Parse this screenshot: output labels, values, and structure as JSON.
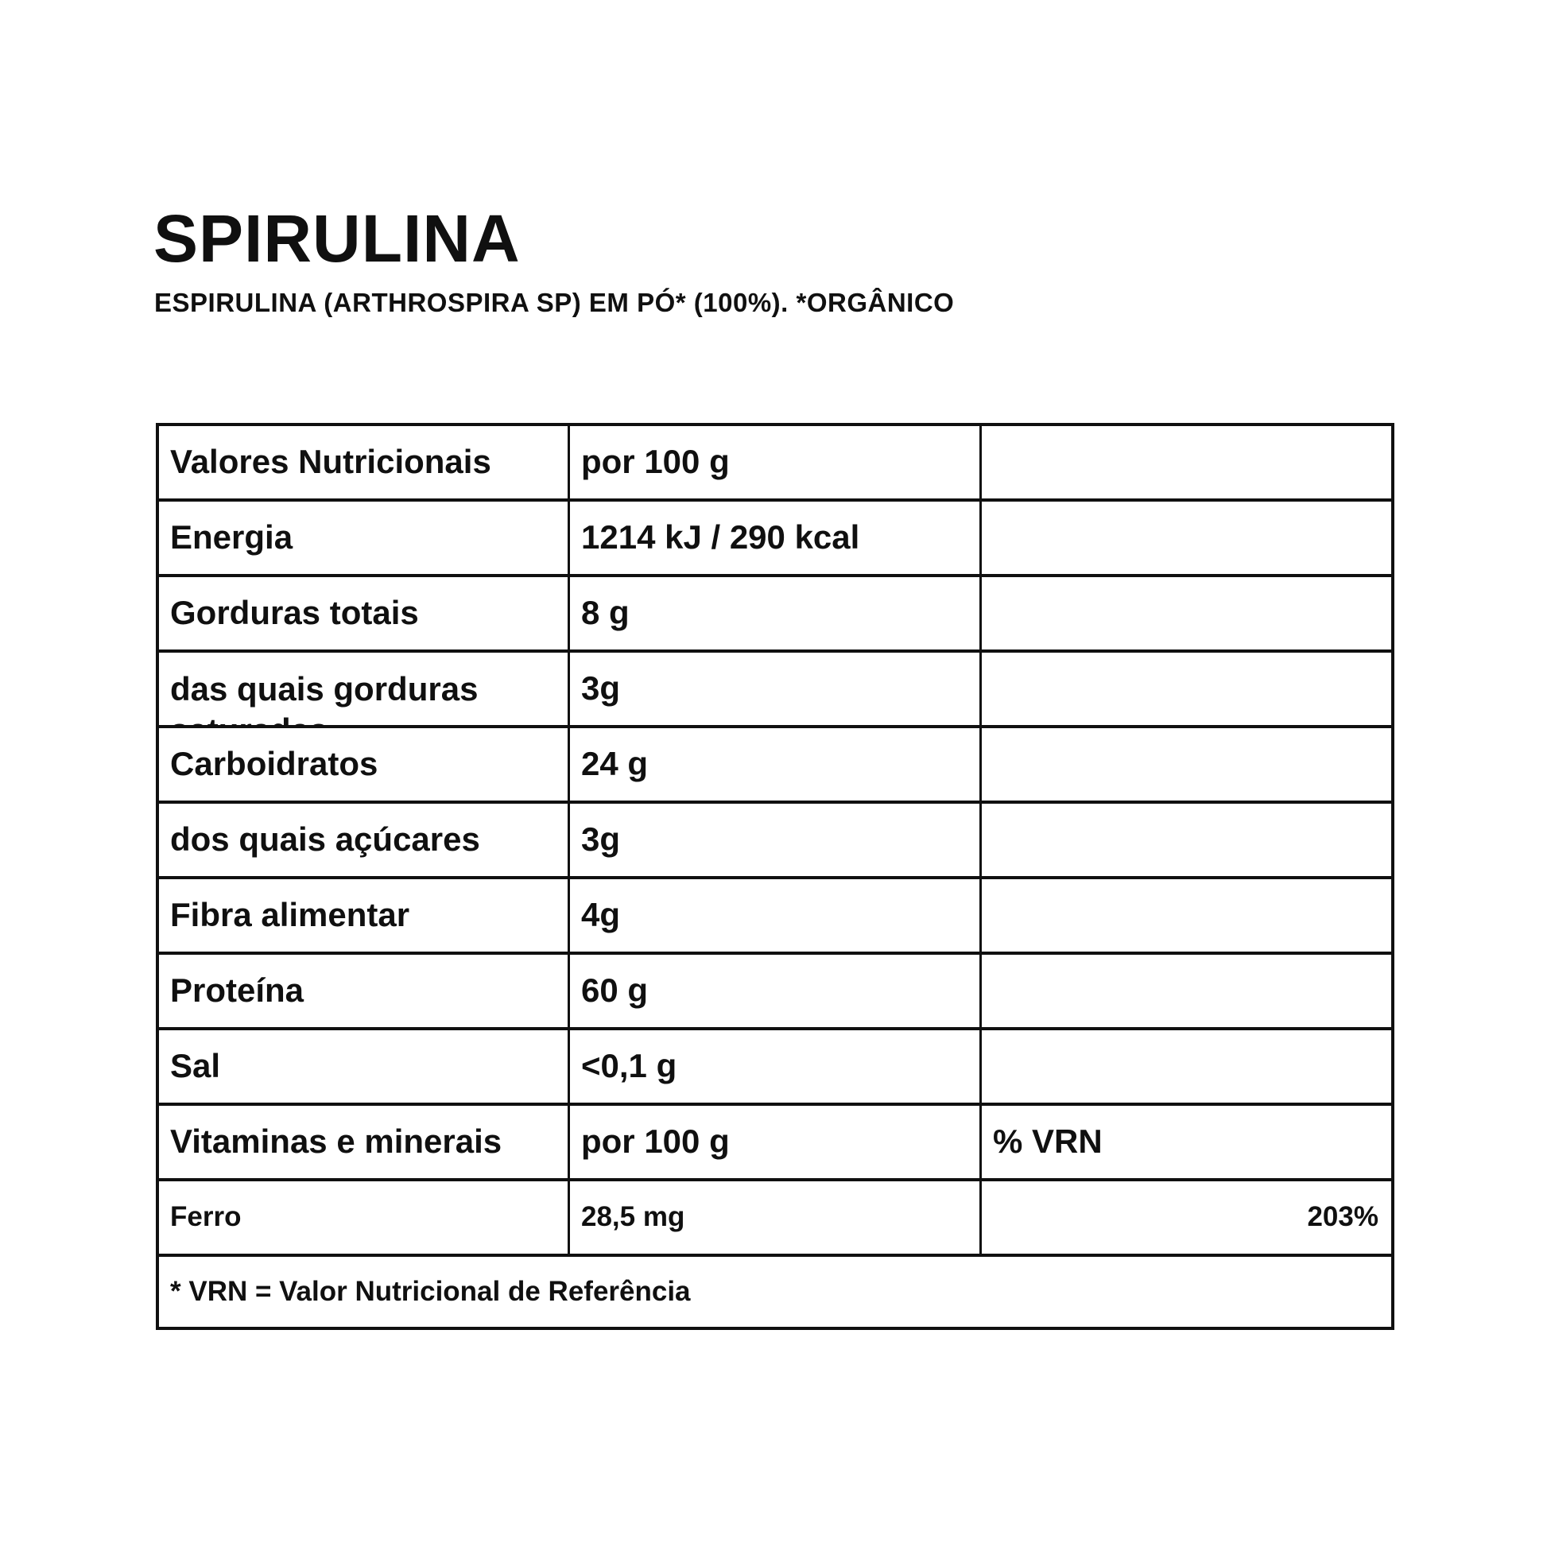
{
  "colors": {
    "background": "#ffffff",
    "text": "#101010",
    "border": "#101010"
  },
  "header": {
    "title": "SPIRULINA",
    "subtitle": "ESPIRULINA (ARTHROSPIRA SP) EM PÓ* (100%). *ORGÂNICO"
  },
  "table": {
    "columns": [
      "label",
      "amount",
      "vrn"
    ],
    "rows": [
      {
        "label": "Valores Nutricionais",
        "value": "por 100 g",
        "vrn": ""
      },
      {
        "label": "Energia",
        "value": "1214 kJ / 290 kcal",
        "vrn": ""
      },
      {
        "label": "Gorduras totais",
        "value": "8 g",
        "vrn": ""
      },
      {
        "label": "das quais gorduras saturadas",
        "value": "3g",
        "vrn": "",
        "clipped": true
      },
      {
        "label": "Carboidratos",
        "value": "24 g",
        "vrn": ""
      },
      {
        "label": "dos quais açúcares",
        "value": "3g",
        "vrn": ""
      },
      {
        "label": "Fibra alimentar",
        "value": "4g",
        "vrn": ""
      },
      {
        "label": "Proteína",
        "value": "60 g",
        "vrn": ""
      },
      {
        "label": "Sal",
        "value": "<0,1 g",
        "vrn": ""
      },
      {
        "label": "Vitaminas e minerais",
        "value": "por 100 g",
        "vrn": "% VRN"
      },
      {
        "label": "Ferro",
        "value": "28,5 mg",
        "vrn": "203%",
        "small": true,
        "vrn_align": "right"
      }
    ],
    "footnote": "* VRN = Valor Nutricional de Referência"
  }
}
